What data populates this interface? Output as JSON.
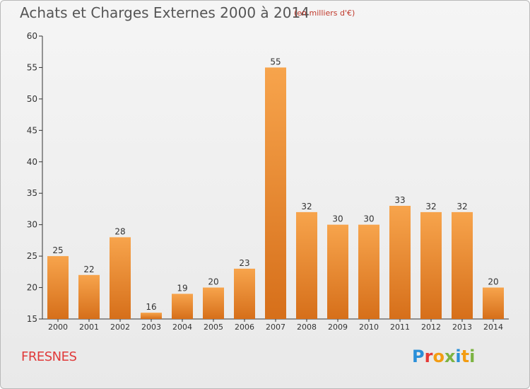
{
  "header": {
    "title": "Achats et Charges Externes 2000 à 2014",
    "unit_note": "(en milliers d'€)"
  },
  "footer": {
    "place": "FRESNES",
    "brand": "Proxiti"
  },
  "colors": {
    "bar_top": "#f7a44c",
    "bar_bottom": "#d66f1a",
    "place_text": "#e03a3a",
    "brand_letters": [
      "#2a8fd8",
      "#e53935",
      "#f39c12",
      "#7cb342",
      "#2a8fd8",
      "#f39c12",
      "#7cb342"
    ]
  },
  "chart_data": {
    "type": "bar",
    "categories": [
      "2000",
      "2001",
      "2002",
      "2003",
      "2004",
      "2005",
      "2006",
      "2007",
      "2008",
      "2009",
      "2010",
      "2011",
      "2012",
      "2013",
      "2014"
    ],
    "values": [
      25,
      22,
      28,
      16,
      19,
      20,
      23,
      55,
      32,
      30,
      30,
      33,
      32,
      32,
      20
    ],
    "title": "Achats et Charges Externes 2000 à 2014",
    "ylim": [
      15,
      60
    ],
    "yticks": [
      15,
      20,
      25,
      30,
      35,
      40,
      45,
      50,
      55,
      60
    ],
    "grid": false,
    "data_labels": true
  }
}
